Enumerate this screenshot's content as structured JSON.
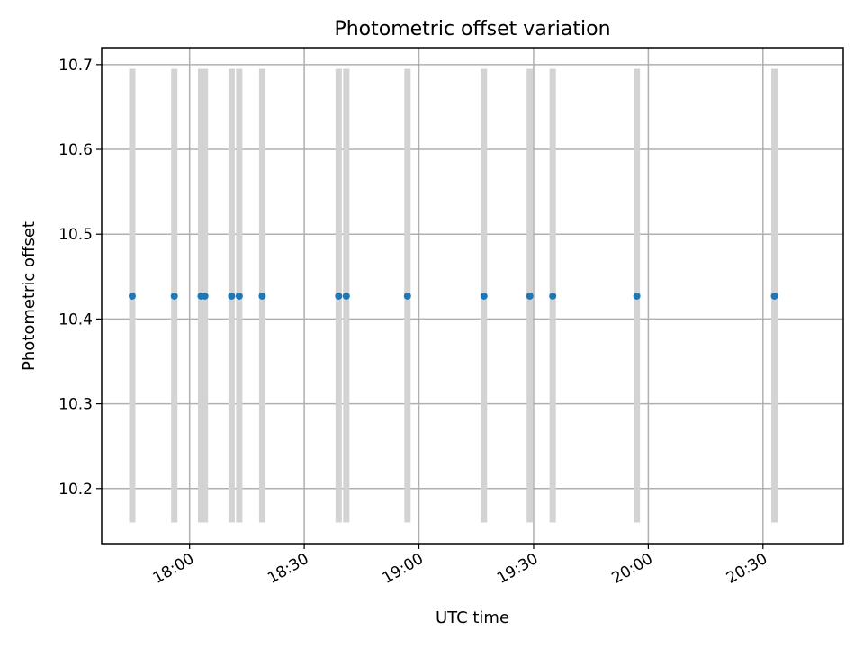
{
  "chart_data": {
    "type": "scatter",
    "title": "Photometric offset variation",
    "xlabel": "UTC time",
    "ylabel": "Photometric offset",
    "x_is_time": true,
    "xlim": [
      "17:37",
      "20:51"
    ],
    "ylim": [
      10.135,
      10.72
    ],
    "x_ticks": [
      "18:00",
      "18:30",
      "19:00",
      "19:30",
      "20:00",
      "20:30"
    ],
    "y_ticks": [
      10.2,
      10.3,
      10.4,
      10.5,
      10.6,
      10.7
    ],
    "grid": true,
    "colors": {
      "point": "#1f77b4",
      "errorbar": "#d3d3d3"
    },
    "series": [
      {
        "x": [
          "17:45",
          "17:56",
          "18:03",
          "18:04",
          "18:11",
          "18:13",
          "18:19",
          "18:39",
          "18:41",
          "18:57",
          "19:17",
          "19:29",
          "19:35",
          "19:57",
          "20:33"
        ],
        "y": [
          10.427,
          10.427,
          10.427,
          10.427,
          10.427,
          10.427,
          10.427,
          10.427,
          10.427,
          10.427,
          10.427,
          10.427,
          10.427,
          10.427,
          10.427
        ],
        "yerr_low": [
          10.16,
          10.16,
          10.16,
          10.16,
          10.16,
          10.16,
          10.16,
          10.16,
          10.16,
          10.16,
          10.16,
          10.16,
          10.16,
          10.16,
          10.16
        ],
        "yerr_high": [
          10.695,
          10.695,
          10.695,
          10.695,
          10.695,
          10.695,
          10.695,
          10.695,
          10.695,
          10.695,
          10.695,
          10.695,
          10.695,
          10.695,
          10.695
        ]
      }
    ]
  }
}
